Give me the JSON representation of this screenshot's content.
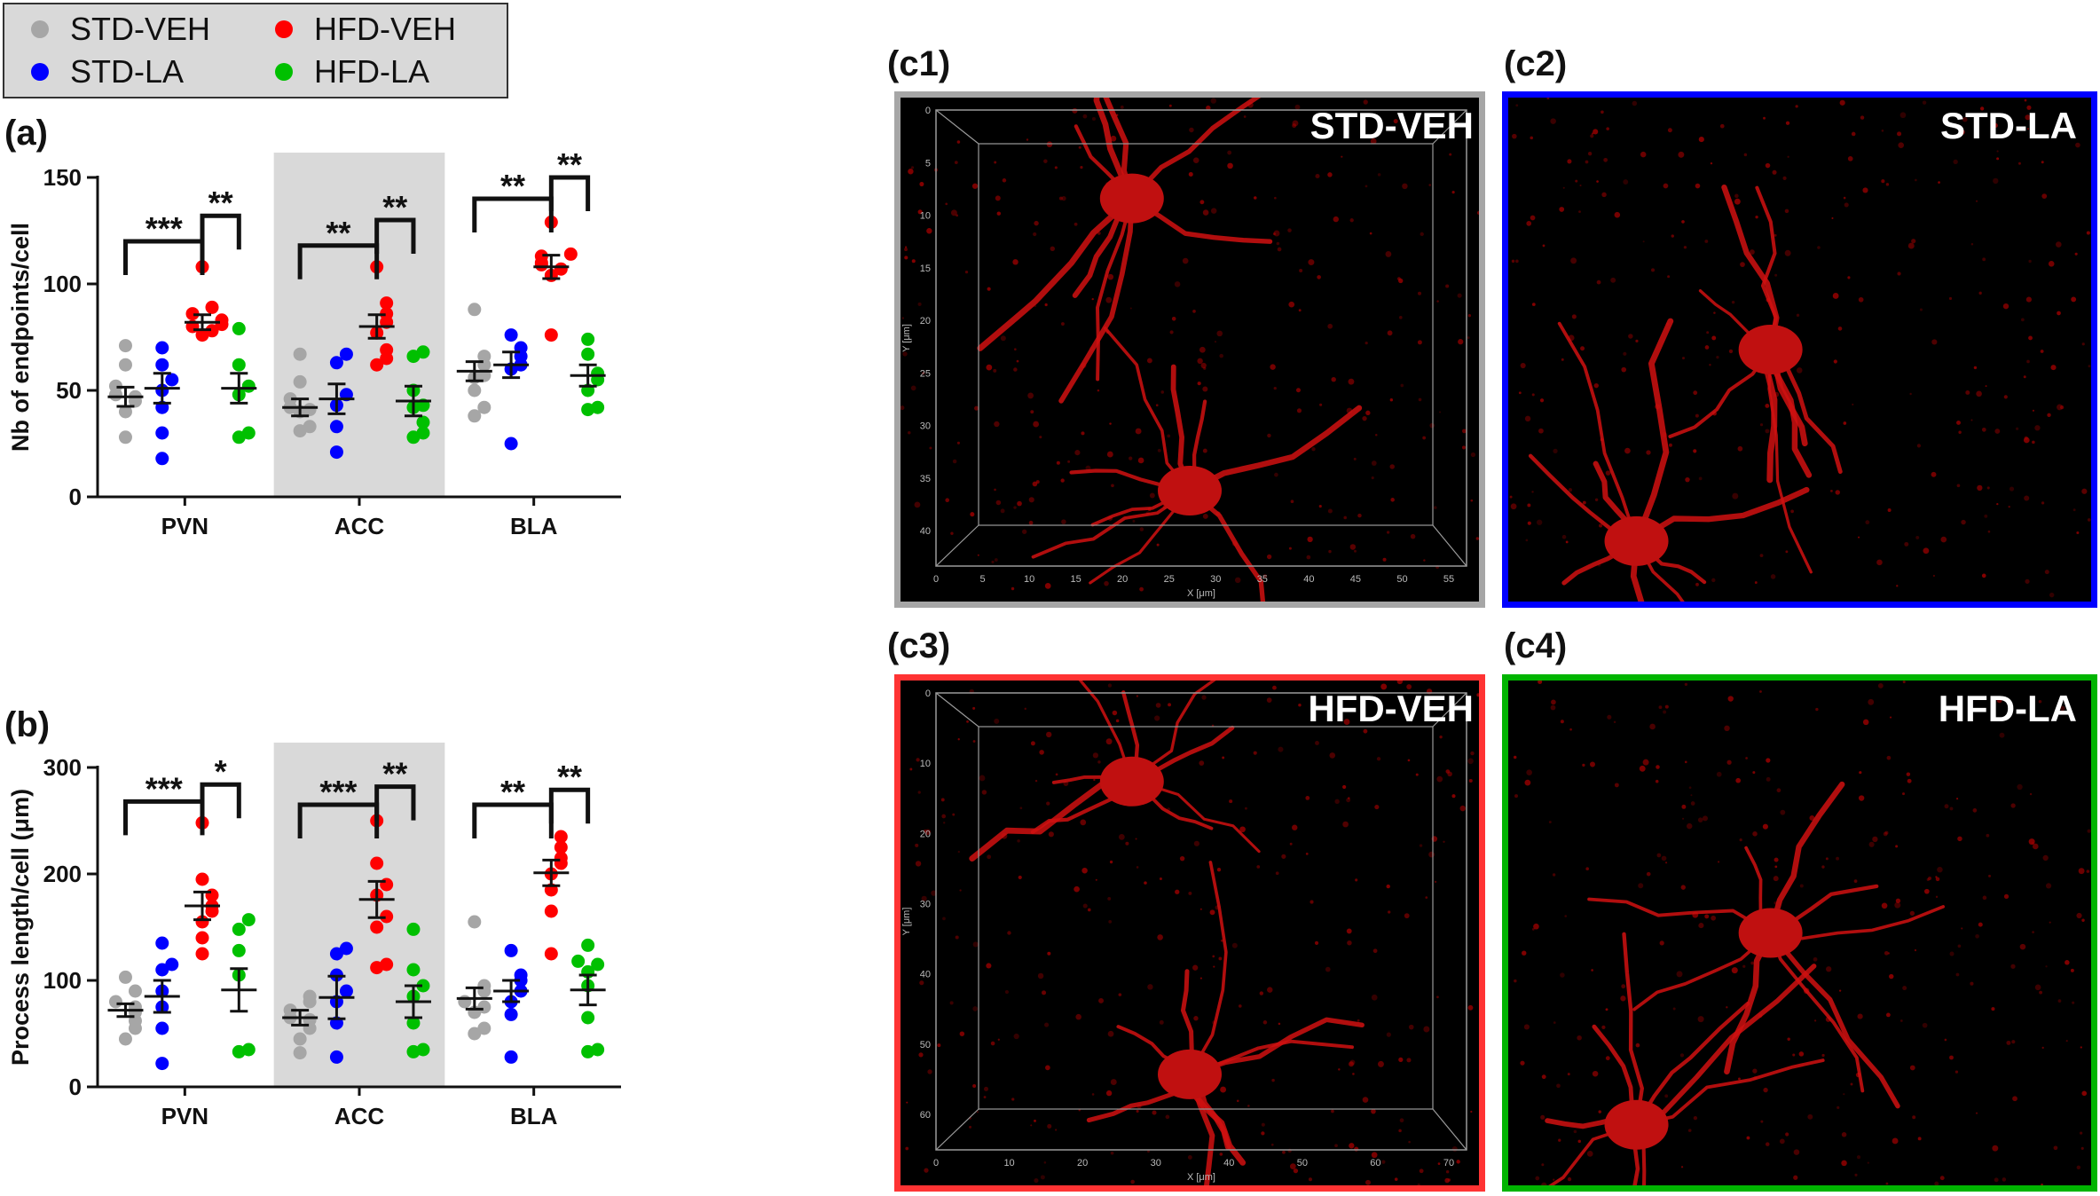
{
  "legend": {
    "items": [
      {
        "label": "STD-VEH",
        "color": "#a6a6a6"
      },
      {
        "label": "HFD-VEH",
        "color": "#ff0000"
      },
      {
        "label": "STD-LA",
        "color": "#0000ff"
      },
      {
        "label": "HFD-LA",
        "color": "#00c000"
      }
    ]
  },
  "chart_data": [
    {
      "panel": "(a)",
      "type": "scatter",
      "ylabel": "Nb of endpoints/cell",
      "ylim": [
        0,
        150
      ],
      "yticks": [
        "0",
        "50",
        "100",
        "150"
      ],
      "categories": [
        "PVN",
        "ACC",
        "BLA"
      ],
      "shaded_category": "ACC",
      "series": [
        {
          "name": "STD-VEH",
          "color": "#a6a6a6",
          "points": [
            [
              71,
              62,
              52,
              48,
              47,
              45,
              40,
              28
            ],
            [
              67,
              54,
              46,
              42,
              41,
              40,
              33,
              31
            ],
            [
              88,
              66,
              62,
              57,
              56,
              50,
              42,
              38
            ]
          ],
          "mean": [
            47,
            42,
            59
          ],
          "sem": [
            4.5,
            4.0,
            4.5
          ]
        },
        {
          "name": "STD-LA",
          "color": "#0000ff",
          "points": [
            [
              70,
              62,
              55,
              50,
              42,
              30,
              18
            ],
            [
              67,
              63,
              48,
              43,
              33,
              21
            ],
            [
              76,
              70,
              66,
              62,
              60,
              25
            ]
          ],
          "mean": [
            51,
            46,
            62
          ],
          "sem": [
            7,
            7,
            6
          ]
        },
        {
          "name": "HFD-VEH",
          "color": "#ff0000",
          "points": [
            [
              108,
              89,
              86,
              83,
              81,
              80,
              78,
              76
            ],
            [
              108,
              91,
              86,
              82,
              77,
              69,
              65,
              62
            ],
            [
              129,
              114,
              113,
              110,
              109,
              107,
              104,
              76
            ]
          ],
          "mean": [
            82,
            80,
            108
          ],
          "sem": [
            3.5,
            5.5,
            5.5
          ]
        },
        {
          "name": "HFD-LA",
          "color": "#00c000",
          "points": [
            [
              79,
              62,
              52,
              48,
              30,
              28
            ],
            [
              68,
              66,
              50,
              43,
              42,
              35,
              30,
              28
            ],
            [
              74,
              67,
              58,
              55,
              50,
              42,
              41
            ]
          ],
          "mean": [
            51,
            45,
            57
          ],
          "sem": [
            7,
            7,
            5
          ]
        }
      ],
      "brackets": [
        {
          "cat": 0,
          "from": 0,
          "to": 2,
          "y": 120,
          "label": "***"
        },
        {
          "cat": 0,
          "from": 2,
          "to": 3,
          "y": 132,
          "label": "**"
        },
        {
          "cat": 1,
          "from": 0,
          "to": 2,
          "y": 118,
          "label": "**"
        },
        {
          "cat": 1,
          "from": 2,
          "to": 3,
          "y": 130,
          "label": "**"
        },
        {
          "cat": 2,
          "from": 0,
          "to": 2,
          "y": 140,
          "label": "**"
        },
        {
          "cat": 2,
          "from": 2,
          "to": 3,
          "y": 150,
          "label": "**"
        }
      ]
    },
    {
      "panel": "(b)",
      "type": "scatter",
      "ylabel": "Process length/cell (μm)",
      "ylim": [
        0,
        300
      ],
      "yticks": [
        "0",
        "100",
        "200",
        "300"
      ],
      "categories": [
        "PVN",
        "ACC",
        "BLA"
      ],
      "shaded_category": "ACC",
      "series": [
        {
          "name": "STD-VEH",
          "color": "#a6a6a6",
          "points": [
            [
              103,
              90,
              80,
              75,
              70,
              62,
              55,
              45
            ],
            [
              85,
              80,
              72,
              65,
              63,
              55,
              45,
              32
            ],
            [
              155,
              95,
              90,
              80,
              75,
              70,
              55,
              50
            ]
          ],
          "mean": [
            72,
            65,
            83
          ],
          "sem": [
            6,
            7,
            10
          ]
        },
        {
          "name": "STD-LA",
          "color": "#0000ff",
          "points": [
            [
              135,
              115,
              110,
              90,
              75,
              55,
              22
            ],
            [
              130,
              125,
              105,
              90,
              80,
              60,
              28
            ],
            [
              128,
              105,
              100,
              90,
              80,
              68,
              28
            ]
          ],
          "mean": [
            85,
            84,
            90
          ],
          "sem": [
            15,
            20,
            10
          ]
        },
        {
          "name": "HFD-VEH",
          "color": "#ff0000",
          "points": [
            [
              248,
              195,
              180,
              170,
              165,
              155,
              140,
              125
            ],
            [
              250,
              210,
              190,
              180,
              160,
              150,
              115,
              112
            ],
            [
              235,
              225,
              215,
              210,
              200,
              185,
              165,
              125
            ]
          ],
          "mean": [
            170,
            176,
            201
          ],
          "sem": [
            13,
            17,
            12
          ]
        },
        {
          "name": "HFD-LA",
          "color": "#00c000",
          "points": [
            [
              157,
              148,
              128,
              105,
              35,
              33
            ],
            [
              148,
              110,
              95,
              85,
              60,
              35,
              33
            ],
            [
              133,
              118,
              115,
              108,
              95,
              65,
              35,
              33
            ]
          ],
          "mean": [
            91,
            80,
            91
          ],
          "sem": [
            20,
            15,
            14
          ]
        }
      ],
      "brackets": [
        {
          "cat": 0,
          "from": 0,
          "to": 2,
          "y": 268,
          "label": "***"
        },
        {
          "cat": 0,
          "from": 2,
          "to": 3,
          "y": 284,
          "label": "*"
        },
        {
          "cat": 1,
          "from": 0,
          "to": 2,
          "y": 265,
          "label": "***"
        },
        {
          "cat": 1,
          "from": 2,
          "to": 3,
          "y": 282,
          "label": "**"
        },
        {
          "cat": 2,
          "from": 0,
          "to": 2,
          "y": 265,
          "label": "**"
        },
        {
          "cat": 2,
          "from": 2,
          "to": 3,
          "y": 279,
          "label": "**"
        }
      ]
    }
  ],
  "micrographs": [
    {
      "panel": "(c1)",
      "title": "STD-VEH",
      "border": "#a6a6a6",
      "axes": true,
      "xticks": [
        "0",
        "5",
        "10",
        "15",
        "20",
        "25",
        "30",
        "35",
        "40",
        "45",
        "50",
        "55"
      ],
      "yticks": [
        "0",
        "5",
        "10",
        "15",
        "20",
        "25",
        "30",
        "35",
        "40"
      ],
      "xaxis_label": "X [μm]",
      "yaxis_label": "Y [μm]"
    },
    {
      "panel": "(c2)",
      "title": "STD-LA",
      "border": "#0000ff",
      "axes": false
    },
    {
      "panel": "(c3)",
      "title": "HFD-VEH",
      "border": "#ff3333",
      "axes": true,
      "xticks": [
        "0",
        "10",
        "20",
        "30",
        "40",
        "50",
        "60",
        "70"
      ],
      "yticks": [
        "0",
        "10",
        "20",
        "30",
        "40",
        "50",
        "60"
      ],
      "xaxis_label": "X [μm]",
      "yaxis_label": "Y [μm]"
    },
    {
      "panel": "(c4)",
      "title": "HFD-LA",
      "border": "#00b400",
      "axes": false
    }
  ]
}
